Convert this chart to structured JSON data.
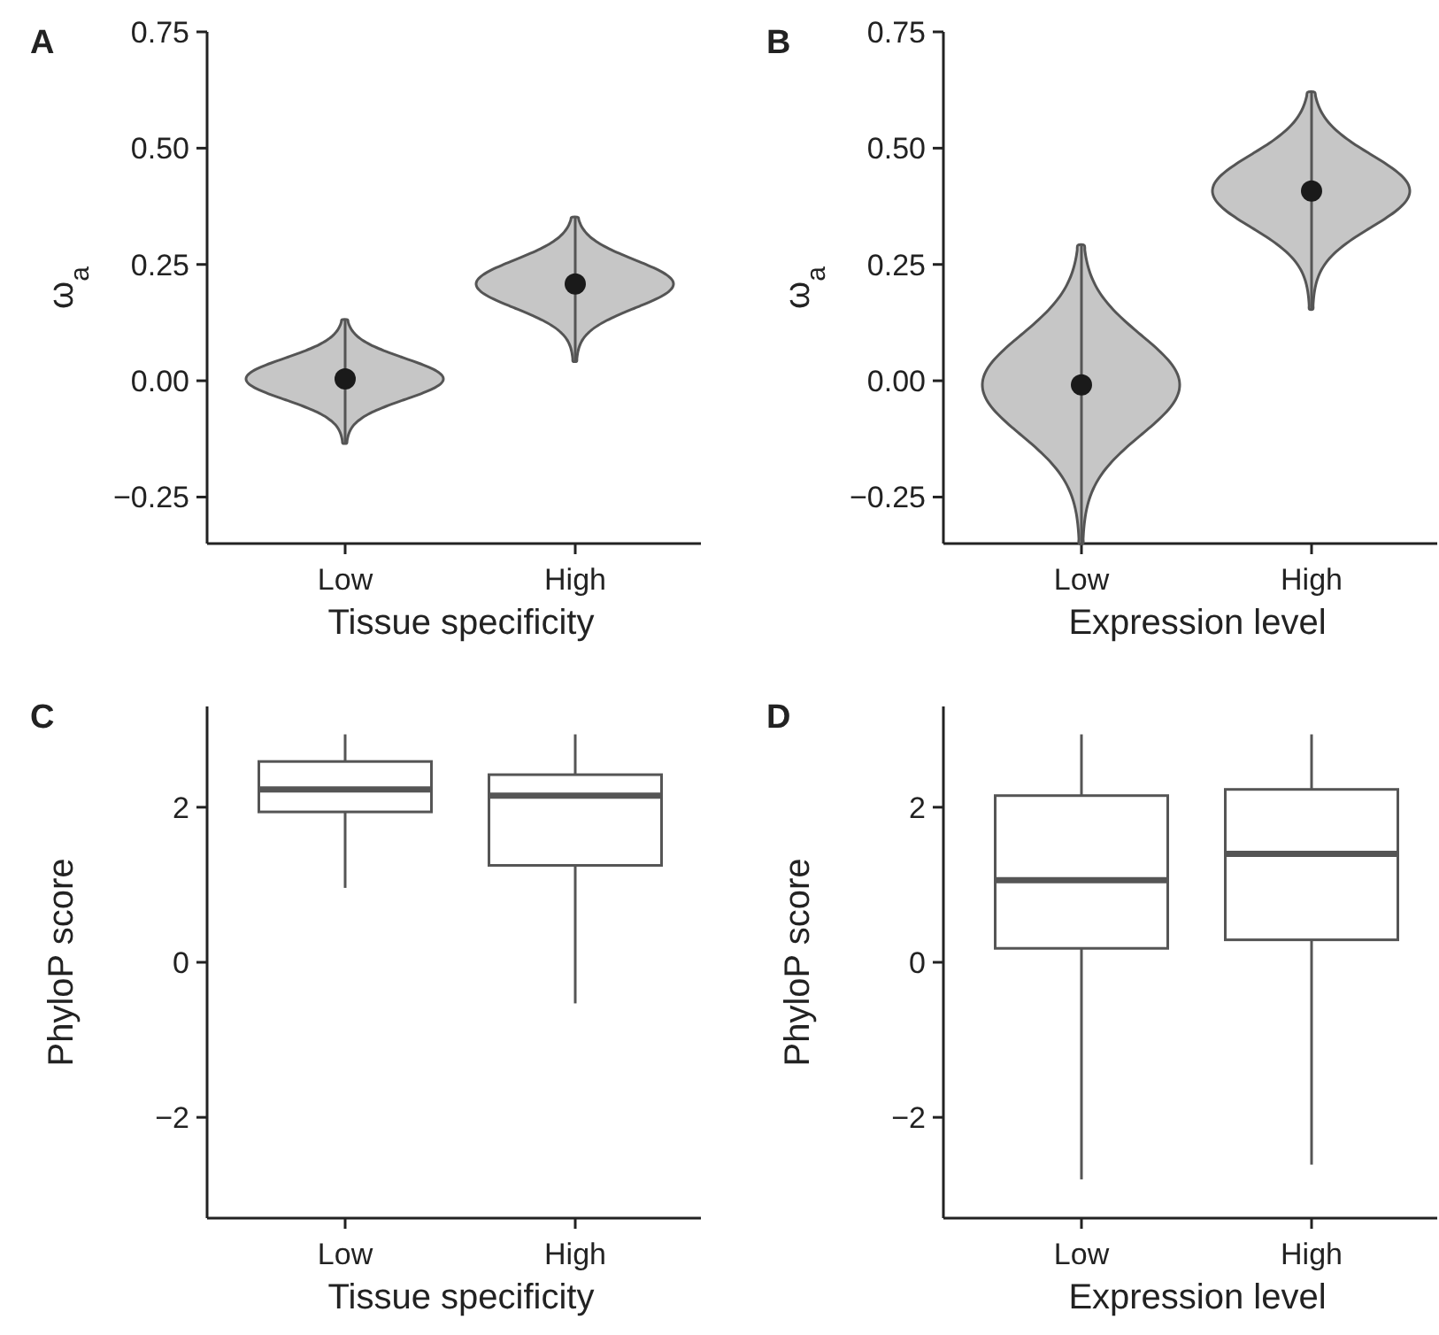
{
  "chart_data": [
    {
      "type": "scatter",
      "title": "A",
      "xlabel": "Tissue specificity",
      "ylabel": "ω$_{a}$",
      "categories": [
        "Low",
        "High"
      ],
      "marker": "circle",
      "ylim": [
        -0.35,
        0.75
      ],
      "yticks": [
        {
          "value": -0.25,
          "label": "−0.25"
        },
        {
          "value": 0,
          "label": "0.00"
        },
        {
          "value": 0.25,
          "label": "0.25"
        },
        {
          "value": 0.5,
          "label": "0.50"
        },
        {
          "value": 0.75,
          "label": "0.75"
        }
      ],
      "series": [
        {
          "color": "#1a1a1a",
          "values": [
            0.004,
            0.208
          ],
          "errors": [
            [
              -0.134,
              0.131
            ],
            [
              0.042,
              0.351
            ]
          ]
        }
      ]
    },
    {
      "type": "scatter",
      "title": "B",
      "xlabel": "Expression level",
      "ylabel": "ω$_{a}$",
      "categories": [
        "Low",
        "High"
      ],
      "marker": "circle",
      "ylim": [
        -0.35,
        0.75
      ],
      "yticks": [
        {
          "value": -0.25,
          "label": "−0.25"
        },
        {
          "value": 0,
          "label": "0.00"
        },
        {
          "value": 0.25,
          "label": "0.25"
        },
        {
          "value": 0.5,
          "label": "0.50"
        },
        {
          "value": 0.75,
          "label": "0.75"
        }
      ],
      "series": [
        {
          "color": "#1a1a1a",
          "values": [
            -0.009,
            0.408
          ],
          "errors": [
            [
              -0.35,
              0.291
            ],
            [
              0.154,
              0.62
            ]
          ]
        }
      ]
    },
    {
      "type": "box",
      "title": "C",
      "xlabel": "Tissue specificity",
      "ylabel": "PhyloP score",
      "categories": [
        "Low",
        "High"
      ],
      "color": "#555555",
      "ylim": [
        -3.3,
        3.3
      ],
      "yticks": [
        {
          "value": -2,
          "label": "−2"
        },
        {
          "value": 0,
          "label": "0"
        },
        {
          "value": 2,
          "label": "2"
        }
      ],
      "boxes": [
        {
          "low": 0.96,
          "q1": 1.94,
          "median": 2.23,
          "q3": 2.59,
          "high": 2.94
        },
        {
          "low": -0.53,
          "q1": 1.25,
          "median": 2.15,
          "q3": 2.42,
          "high": 2.94
        }
      ]
    },
    {
      "type": "box",
      "title": "D",
      "xlabel": "Expression level",
      "ylabel": "PhyloP score",
      "categories": [
        "Low",
        "High"
      ],
      "color": "#555555",
      "ylim": [
        -3.3,
        3.3
      ],
      "yticks": [
        {
          "value": -2,
          "label": "−2"
        },
        {
          "value": 0,
          "label": "0"
        },
        {
          "value": 2,
          "label": "2"
        }
      ],
      "boxes": [
        {
          "low": -2.8,
          "q1": 0.18,
          "median": 1.06,
          "q3": 2.15,
          "high": 2.94
        },
        {
          "low": -2.61,
          "q1": 0.29,
          "median": 1.4,
          "q3": 2.23,
          "high": 2.94
        }
      ]
    }
  ]
}
